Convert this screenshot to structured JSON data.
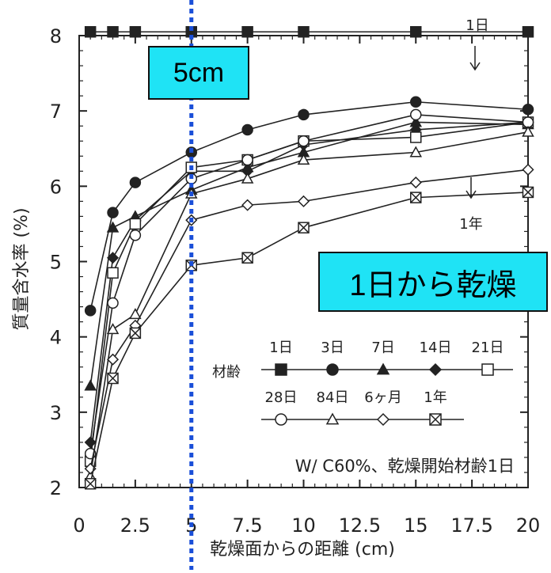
{
  "chart_data": {
    "type": "line",
    "title": "",
    "xlabel": "乾燥面からの距離 (cm)",
    "ylabel": "質量含水率 (%)",
    "xlim": [
      0,
      20
    ],
    "ylim": [
      2,
      8
    ],
    "xticks": [
      "0",
      "2.5",
      "5",
      "7.5",
      "10",
      "12.5",
      "15",
      "17.5",
      "20"
    ],
    "yticks": [
      "2",
      "3",
      "4",
      "5",
      "6",
      "7",
      "8"
    ],
    "grid": false,
    "legend_title": "材齢",
    "legend_placement": "lower-right",
    "series": [
      {
        "name": "1日",
        "marker": "square-filled",
        "x": [
          0.5,
          1.5,
          2.5,
          5,
          7.5,
          10,
          15,
          20
        ],
        "y": [
          8.05,
          8.05,
          8.05,
          8.05,
          8.05,
          8.05,
          8.05,
          8.05
        ]
      },
      {
        "name": "3日",
        "marker": "circle-filled",
        "x": [
          0.5,
          1.5,
          2.5,
          5,
          7.5,
          10,
          15,
          20
        ],
        "y": [
          4.35,
          5.65,
          6.05,
          6.45,
          6.75,
          6.95,
          7.12,
          7.02
        ]
      },
      {
        "name": "7日",
        "marker": "triangle-filled",
        "x": [
          0.5,
          1.5,
          2.5,
          5,
          7.5,
          10,
          15,
          20
        ],
        "y": [
          3.35,
          5.45,
          5.6,
          5.95,
          6.25,
          6.45,
          6.85,
          6.82
        ]
      },
      {
        "name": "14日",
        "marker": "diamond-filled",
        "x": [
          0.5,
          1.5,
          2.5,
          5,
          7.5,
          10,
          15,
          20
        ],
        "y": [
          2.6,
          5.05,
          5.55,
          6.2,
          6.2,
          6.55,
          6.75,
          6.85
        ]
      },
      {
        "name": "21日",
        "marker": "square-open",
        "x": [
          0.5,
          1.5,
          2.5,
          5,
          7.5,
          10,
          15,
          20
        ],
        "y": [
          2.35,
          4.85,
          5.5,
          6.25,
          6.35,
          6.6,
          6.65,
          6.85
        ]
      },
      {
        "name": "28日",
        "marker": "circle-open",
        "x": [
          0.5,
          1.5,
          2.5,
          5,
          7.5,
          10,
          15,
          20
        ],
        "y": [
          2.45,
          4.45,
          5.35,
          6.1,
          6.35,
          6.6,
          6.95,
          6.85
        ]
      },
      {
        "name": "84日",
        "marker": "triangle-open",
        "x": [
          0.5,
          1.5,
          2.5,
          5,
          7.5,
          10,
          15,
          20
        ],
        "y": [
          2.15,
          4.1,
          4.3,
          5.9,
          6.1,
          6.35,
          6.45,
          6.72
        ]
      },
      {
        "name": "6ヶ月",
        "marker": "diamond-open",
        "x": [
          0.5,
          1.5,
          2.5,
          5,
          7.5,
          10,
          15,
          20
        ],
        "y": [
          2.25,
          3.7,
          4.15,
          5.55,
          5.75,
          5.8,
          6.05,
          6.22
        ]
      },
      {
        "name": "1年",
        "marker": "square-x",
        "x": [
          0.5,
          1.5,
          2.5,
          5,
          7.5,
          10,
          15,
          20
        ],
        "y": [
          2.05,
          3.45,
          4.05,
          4.95,
          5.05,
          5.45,
          5.85,
          5.92
        ]
      }
    ],
    "annotations": {
      "label_1day": "1日",
      "label_1year": "1年",
      "condition": "W/ C60%、乾燥開始材齢1日",
      "callout_5cm": "5cm",
      "callout_dry": "1日から乾燥"
    },
    "marker_line_x": 5,
    "colors": {
      "callout_fill": "#1fe3f5",
      "dotted_line": "#1a4fd8",
      "ink": "#222222"
    }
  }
}
